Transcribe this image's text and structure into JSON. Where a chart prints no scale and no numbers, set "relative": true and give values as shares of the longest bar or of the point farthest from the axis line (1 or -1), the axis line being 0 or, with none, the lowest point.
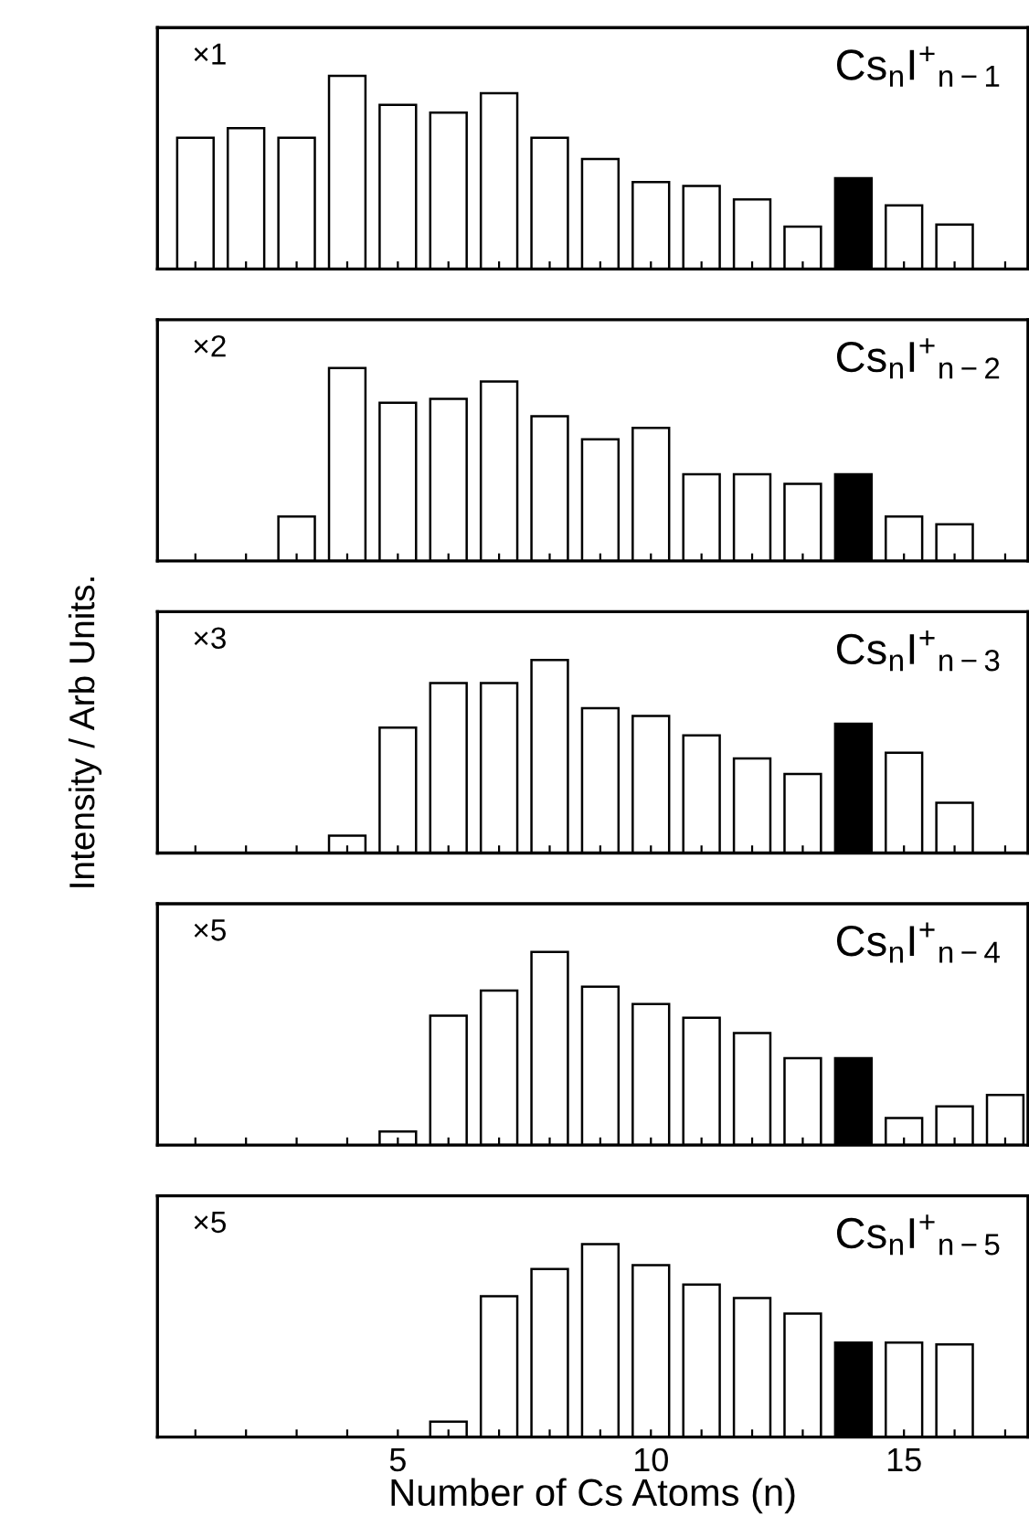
{
  "chart_data": [
    {
      "type": "bar",
      "relative": true,
      "x": [
        1,
        2,
        3,
        4,
        5,
        6,
        7,
        8,
        9,
        10,
        11,
        12,
        13,
        14,
        15,
        16
      ],
      "xlim": [
        0.25,
        17.45
      ],
      "xticks": [
        {
          "value": 1,
          "label": null
        },
        {
          "value": 2,
          "label": null
        },
        {
          "value": 3,
          "label": null
        },
        {
          "value": 4,
          "label": null
        },
        {
          "value": 5,
          "label": null
        },
        {
          "value": 6,
          "label": null
        },
        {
          "value": 7,
          "label": null
        },
        {
          "value": 8,
          "label": null
        },
        {
          "value": 9,
          "label": null
        },
        {
          "value": 10,
          "label": null
        },
        {
          "value": 11,
          "label": null
        },
        {
          "value": 12,
          "label": null
        },
        {
          "value": 13,
          "label": null
        },
        {
          "value": 14,
          "label": null
        },
        {
          "value": 15,
          "label": null
        },
        {
          "value": 16,
          "label": null
        },
        {
          "value": 17,
          "label": null
        }
      ],
      "tick_labels": false,
      "values": [
        0.68,
        0.73,
        0.68,
        1,
        0.85,
        0.81,
        0.91,
        0.68,
        0.57,
        0.45,
        0.43,
        0.36,
        0.22,
        0.47,
        0.33,
        0.23
      ],
      "colors": [
        "#ffffff",
        "#ffffff",
        "#ffffff",
        "#ffffff",
        "#ffffff",
        "#ffffff",
        "#ffffff",
        "#ffffff",
        "#ffffff",
        "#ffffff",
        "#ffffff",
        "#ffffff",
        "#ffffff",
        "#000000",
        "#ffffff",
        "#ffffff"
      ],
      "annotations": [
        "×1",
        "Cs$_{n}$I$^{+}$$_{n−1}$"
      ]
    },
    {
      "type": "bar",
      "relative": true,
      "x": [
        3,
        4,
        5,
        6,
        7,
        8,
        9,
        10,
        11,
        12,
        13,
        14,
        15,
        16
      ],
      "xlim": [
        0.25,
        17.45
      ],
      "xticks": [
        {
          "value": 1,
          "label": null
        },
        {
          "value": 2,
          "label": null
        },
        {
          "value": 3,
          "label": null
        },
        {
          "value": 4,
          "label": null
        },
        {
          "value": 5,
          "label": null
        },
        {
          "value": 6,
          "label": null
        },
        {
          "value": 7,
          "label": null
        },
        {
          "value": 8,
          "label": null
        },
        {
          "value": 9,
          "label": null
        },
        {
          "value": 10,
          "label": null
        },
        {
          "value": 11,
          "label": null
        },
        {
          "value": 12,
          "label": null
        },
        {
          "value": 13,
          "label": null
        },
        {
          "value": 14,
          "label": null
        },
        {
          "value": 15,
          "label": null
        },
        {
          "value": 16,
          "label": null
        },
        {
          "value": 17,
          "label": null
        }
      ],
      "tick_labels": false,
      "values": [
        0.23,
        1,
        0.82,
        0.84,
        0.93,
        0.75,
        0.63,
        0.69,
        0.45,
        0.45,
        0.4,
        0.45,
        0.23,
        0.19
      ],
      "colors": [
        "#ffffff",
        "#ffffff",
        "#ffffff",
        "#ffffff",
        "#ffffff",
        "#ffffff",
        "#ffffff",
        "#ffffff",
        "#ffffff",
        "#ffffff",
        "#ffffff",
        "#000000",
        "#ffffff",
        "#ffffff"
      ],
      "annotations": [
        "×2",
        "Cs$_{n}$I$^{+}$$_{n−2}$"
      ]
    },
    {
      "type": "bar",
      "relative": true,
      "ylabel": "Intensity / Arb Units.",
      "x": [
        4,
        5,
        6,
        7,
        8,
        9,
        10,
        11,
        12,
        13,
        14,
        15,
        16
      ],
      "xlim": [
        0.25,
        17.45
      ],
      "xticks": [
        {
          "value": 1,
          "label": null
        },
        {
          "value": 2,
          "label": null
        },
        {
          "value": 3,
          "label": null
        },
        {
          "value": 4,
          "label": null
        },
        {
          "value": 5,
          "label": null
        },
        {
          "value": 6,
          "label": null
        },
        {
          "value": 7,
          "label": null
        },
        {
          "value": 8,
          "label": null
        },
        {
          "value": 9,
          "label": null
        },
        {
          "value": 10,
          "label": null
        },
        {
          "value": 11,
          "label": null
        },
        {
          "value": 12,
          "label": null
        },
        {
          "value": 13,
          "label": null
        },
        {
          "value": 14,
          "label": null
        },
        {
          "value": 15,
          "label": null
        },
        {
          "value": 16,
          "label": null
        },
        {
          "value": 17,
          "label": null
        }
      ],
      "tick_labels": false,
      "values": [
        0.09,
        0.65,
        0.88,
        0.88,
        1,
        0.75,
        0.71,
        0.61,
        0.49,
        0.41,
        0.67,
        0.52,
        0.26
      ],
      "colors": [
        "#ffffff",
        "#ffffff",
        "#ffffff",
        "#ffffff",
        "#ffffff",
        "#ffffff",
        "#ffffff",
        "#ffffff",
        "#ffffff",
        "#ffffff",
        "#000000",
        "#ffffff",
        "#ffffff"
      ],
      "annotations": [
        "×3",
        "Cs$_{n}$I$^{+}$$_{n−3}$"
      ]
    },
    {
      "type": "bar",
      "relative": true,
      "x": [
        5,
        6,
        7,
        8,
        9,
        10,
        11,
        12,
        13,
        14,
        15,
        16,
        17
      ],
      "xlim": [
        0.25,
        17.45
      ],
      "xticks": [
        {
          "value": 1,
          "label": null
        },
        {
          "value": 2,
          "label": null
        },
        {
          "value": 3,
          "label": null
        },
        {
          "value": 4,
          "label": null
        },
        {
          "value": 5,
          "label": null
        },
        {
          "value": 6,
          "label": null
        },
        {
          "value": 7,
          "label": null
        },
        {
          "value": 8,
          "label": null
        },
        {
          "value": 9,
          "label": null
        },
        {
          "value": 10,
          "label": null
        },
        {
          "value": 11,
          "label": null
        },
        {
          "value": 12,
          "label": null
        },
        {
          "value": 13,
          "label": null
        },
        {
          "value": 14,
          "label": null
        },
        {
          "value": 15,
          "label": null
        },
        {
          "value": 16,
          "label": null
        },
        {
          "value": 17,
          "label": null
        }
      ],
      "tick_labels": false,
      "values": [
        0.07,
        0.67,
        0.8,
        1,
        0.82,
        0.73,
        0.66,
        0.58,
        0.45,
        0.45,
        0.14,
        0.2,
        0.26
      ],
      "colors": [
        "#ffffff",
        "#ffffff",
        "#ffffff",
        "#ffffff",
        "#ffffff",
        "#ffffff",
        "#ffffff",
        "#ffffff",
        "#ffffff",
        "#000000",
        "#ffffff",
        "#ffffff",
        "#ffffff"
      ],
      "annotations": [
        "×5",
        "Cs$_{n}$I$^{+}$$_{n−4}$"
      ]
    },
    {
      "type": "bar",
      "relative": true,
      "xlabel": "Number of Cs Atoms (n)",
      "x": [
        6,
        7,
        8,
        9,
        10,
        11,
        12,
        13,
        14,
        15,
        16
      ],
      "xlim": [
        0.25,
        17.45
      ],
      "xticks": [
        {
          "value": 1,
          "label": null
        },
        {
          "value": 2,
          "label": null
        },
        {
          "value": 3,
          "label": null
        },
        {
          "value": 4,
          "label": null
        },
        5,
        {
          "value": 6,
          "label": null
        },
        {
          "value": 7,
          "label": null
        },
        {
          "value": 8,
          "label": null
        },
        {
          "value": 9,
          "label": null
        },
        10,
        {
          "value": 11,
          "label": null
        },
        {
          "value": 12,
          "label": null
        },
        {
          "value": 13,
          "label": null
        },
        {
          "value": 14,
          "label": null
        },
        15,
        {
          "value": 16,
          "label": null
        },
        {
          "value": 17,
          "label": null
        }
      ],
      "tick_labels": "x",
      "values": [
        0.08,
        0.73,
        0.87,
        1,
        0.89,
        0.79,
        0.72,
        0.64,
        0.49,
        0.49,
        0.48
      ],
      "colors": [
        "#ffffff",
        "#ffffff",
        "#ffffff",
        "#ffffff",
        "#ffffff",
        "#ffffff",
        "#ffffff",
        "#ffffff",
        "#000000",
        "#ffffff",
        "#ffffff"
      ],
      "annotations": [
        "×5",
        "Cs$_{n}$I$^{+}$$_{n−5}$"
      ]
    }
  ]
}
